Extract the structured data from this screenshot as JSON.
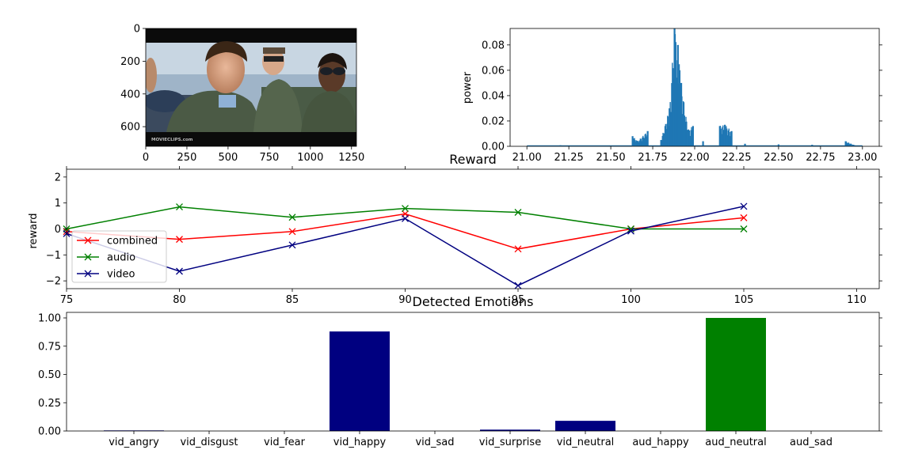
{
  "chart_data": [
    {
      "type": "image",
      "x_ticks": [
        0,
        250,
        500,
        750,
        1000,
        1250
      ],
      "y_ticks": [
        0,
        200,
        400,
        600
      ],
      "xlim": [
        0,
        1280
      ],
      "ylim": [
        720,
        0
      ],
      "watermark": "MOVIECLIPS.com"
    },
    {
      "type": "bar",
      "ylabel": "power",
      "xlim": [
        20.9,
        23.1
      ],
      "ylim": [
        0,
        0.093
      ],
      "x_ticks": [
        "21.00",
        "21.25",
        "21.50",
        "21.75",
        "22.00",
        "22.25",
        "22.50",
        "22.75",
        "23.00"
      ],
      "y_ticks": [
        "0.00",
        "0.02",
        "0.04",
        "0.06",
        "0.08"
      ],
      "color": "#1f77b4",
      "peaks": [
        {
          "x": 21.1,
          "y": 0.0005
        },
        {
          "x": 21.2,
          "y": 0.0008
        },
        {
          "x": 21.3,
          "y": 0.0006
        },
        {
          "x": 21.5,
          "y": 0.0006
        },
        {
          "x": 21.63,
          "y": 0.008
        },
        {
          "x": 21.66,
          "y": 0.004
        },
        {
          "x": 21.72,
          "y": 0.012
        },
        {
          "x": 21.8,
          "y": 0.005
        },
        {
          "x": 21.85,
          "y": 0.03
        },
        {
          "x": 21.88,
          "y": 0.093
        },
        {
          "x": 21.9,
          "y": 0.08
        },
        {
          "x": 21.92,
          "y": 0.05
        },
        {
          "x": 21.96,
          "y": 0.013
        },
        {
          "x": 21.99,
          "y": 0.016
        },
        {
          "x": 22.05,
          "y": 0.004
        },
        {
          "x": 22.15,
          "y": 0.016
        },
        {
          "x": 22.18,
          "y": 0.017
        },
        {
          "x": 22.22,
          "y": 0.012
        },
        {
          "x": 22.3,
          "y": 0.002
        },
        {
          "x": 22.5,
          "y": 0.0015
        },
        {
          "x": 22.7,
          "y": 0.0012
        },
        {
          "x": 22.9,
          "y": 0.004
        },
        {
          "x": 22.95,
          "y": 0.001
        }
      ]
    },
    {
      "type": "line",
      "title": "Reward",
      "ylabel": "reward",
      "xlim": [
        75,
        111
      ],
      "ylim": [
        -2.3,
        2.3
      ],
      "x_ticks": [
        "75",
        "80",
        "85",
        "90",
        "95",
        "100",
        "105",
        "110"
      ],
      "y_ticks": [
        "2",
        "1",
        "0",
        "−1",
        "−2"
      ],
      "legend": "lower-left",
      "x": [
        75,
        80,
        85,
        90,
        95,
        100,
        105
      ],
      "series": [
        {
          "name": "combined",
          "color": "#ff0000",
          "values": [
            -0.1,
            -0.4,
            -0.1,
            0.58,
            -0.77,
            0.0,
            0.43
          ]
        },
        {
          "name": "audio",
          "color": "#008000",
          "values": [
            0.0,
            0.85,
            0.45,
            0.79,
            0.64,
            0.0,
            0.0
          ]
        },
        {
          "name": "video",
          "color": "#000080",
          "values": [
            -0.18,
            -1.63,
            -0.62,
            0.4,
            -2.18,
            -0.08,
            0.87
          ]
        }
      ]
    },
    {
      "type": "bar",
      "title": "Detected Emotions",
      "ylim": [
        0,
        1.0
      ],
      "y_ticks": [
        "0.00",
        "0.25",
        "0.50",
        "0.75",
        "1.00"
      ],
      "categories": [
        "vid_angry",
        "vid_disgust",
        "vid_fear",
        "vid_happy",
        "vid_sad",
        "vid_surprise",
        "vid_neutral",
        "aud_happy",
        "aud_neutral",
        "aud_sad"
      ],
      "values": [
        0.005,
        0.0,
        0.0,
        0.88,
        0.0,
        0.012,
        0.09,
        0.0,
        1.0,
        0.0
      ],
      "colors": [
        "#000080",
        "#000080",
        "#000080",
        "#000080",
        "#000080",
        "#000080",
        "#000080",
        "#008000",
        "#008000",
        "#008000"
      ]
    }
  ]
}
